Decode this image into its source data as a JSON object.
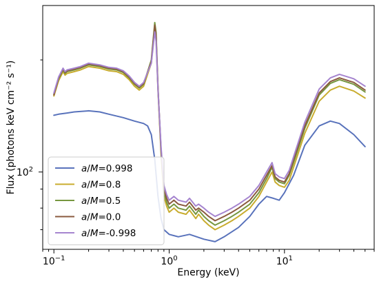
{
  "chart_data": {
    "type": "line",
    "xlabel": "Energy (keV)",
    "ylabel": "Flux (photons keV cm⁻² s⁻¹)",
    "xscale": "log",
    "yscale": "log",
    "xlim": [
      0.08,
      60
    ],
    "ylim": [
      62,
      280
    ],
    "xticks": [
      {
        "value": 0.1,
        "base": "10",
        "exp": "−1"
      },
      {
        "value": 1,
        "base": "10",
        "exp": "0"
      },
      {
        "value": 10,
        "base": "10",
        "exp": "1"
      }
    ],
    "yticks": [
      {
        "value": 100,
        "base": "10",
        "exp": "2"
      }
    ],
    "legend_position": "lower-left",
    "series": [
      {
        "name": "a/M=0.998",
        "label_parts": {
          "italic": "a",
          "mid": "/",
          "italic2": "M",
          "rest": "=0.998"
        },
        "color": "#5872bb",
        "x": [
          0.1,
          0.11,
          0.13,
          0.15,
          0.2,
          0.25,
          0.3,
          0.4,
          0.5,
          0.6,
          0.65,
          0.7,
          0.75,
          0.8,
          0.85,
          0.9,
          1.0,
          1.2,
          1.5,
          2.0,
          2.5,
          3.0,
          4.0,
          5.0,
          6.0,
          7.0,
          8.0,
          9.0,
          10,
          12,
          15,
          20,
          25,
          30,
          40,
          50
        ],
        "y": [
          142,
          143,
          144,
          145,
          146,
          145,
          143,
          140,
          137,
          135,
          133,
          126,
          108,
          86,
          75,
          70,
          68,
          67,
          68,
          66,
          65,
          67,
          71,
          76,
          82,
          86,
          85,
          84,
          88,
          98,
          118,
          133,
          137,
          135,
          126,
          117
        ]
      },
      {
        "name": "a/M=0.8",
        "label_parts": {
          "italic": "a",
          "mid": "/",
          "italic2": "M",
          "rest": "=0.8"
        },
        "color": "#c8ac2e",
        "x": [
          0.1,
          0.11,
          0.12,
          0.125,
          0.13,
          0.15,
          0.17,
          0.2,
          0.25,
          0.3,
          0.35,
          0.4,
          0.45,
          0.5,
          0.55,
          0.6,
          0.7,
          0.75,
          0.77,
          0.8,
          0.85,
          0.9,
          0.95,
          1.0,
          1.1,
          1.2,
          1.4,
          1.5,
          1.7,
          1.8,
          2.0,
          2.2,
          2.5,
          3.0,
          3.5,
          4.0,
          5.0,
          6.0,
          7.0,
          7.8,
          8.3,
          9.0,
          10,
          11,
          12,
          15,
          20,
          25,
          30,
          40,
          50
        ],
        "y": [
          160,
          176,
          186,
          182,
          184,
          186,
          188,
          192,
          190,
          187,
          186,
          183,
          177,
          170,
          166,
          170,
          196,
          245,
          230,
          165,
          112,
          86,
          81,
          78,
          80,
          78,
          77,
          79,
          75,
          77,
          74,
          72,
          70,
          72,
          74,
          76,
          80,
          86,
          94,
          100,
          94,
          92,
          91,
          95,
          103,
          127,
          155,
          166,
          170,
          165,
          158
        ]
      },
      {
        "name": "a/M=0.5",
        "label_parts": {
          "italic": "a",
          "mid": "/",
          "italic2": "M",
          "rest": "=0.5"
        },
        "color": "#76963f",
        "x": [
          0.1,
          0.11,
          0.12,
          0.125,
          0.13,
          0.15,
          0.17,
          0.2,
          0.25,
          0.3,
          0.35,
          0.4,
          0.45,
          0.5,
          0.55,
          0.6,
          0.7,
          0.75,
          0.77,
          0.8,
          0.85,
          0.9,
          0.95,
          1.0,
          1.1,
          1.2,
          1.4,
          1.5,
          1.7,
          1.8,
          2.0,
          2.2,
          2.5,
          3.0,
          3.5,
          4.0,
          5.0,
          6.0,
          7.0,
          7.8,
          8.3,
          9.0,
          10,
          11,
          12,
          15,
          20,
          25,
          30,
          40,
          50
        ],
        "y": [
          162,
          178,
          188,
          184,
          186,
          188,
          190,
          194,
          192,
          189,
          188,
          185,
          179,
          172,
          168,
          172,
          200,
          252,
          237,
          168,
          114,
          88,
          83,
          80,
          82,
          80,
          79,
          81,
          77,
          79,
          76,
          74,
          72,
          74,
          76,
          78,
          82,
          88,
          96,
          103,
          96,
          94,
          93,
          98,
          106,
          131,
          161,
          173,
          177,
          172,
          164
        ]
      },
      {
        "name": "a/M=0.0",
        "label_parts": {
          "italic": "a",
          "mid": "/",
          "italic2": "M",
          "rest": "=0.0"
        },
        "color": "#8a5a3e",
        "x": [
          0.1,
          0.11,
          0.12,
          0.125,
          0.13,
          0.15,
          0.17,
          0.2,
          0.25,
          0.3,
          0.35,
          0.4,
          0.45,
          0.5,
          0.55,
          0.6,
          0.7,
          0.75,
          0.77,
          0.8,
          0.85,
          0.9,
          0.95,
          1.0,
          1.1,
          1.2,
          1.4,
          1.5,
          1.7,
          1.8,
          2.0,
          2.2,
          2.5,
          3.0,
          3.5,
          4.0,
          5.0,
          6.0,
          7.0,
          7.8,
          8.3,
          9.0,
          10,
          11,
          12,
          15,
          20,
          25,
          30,
          40,
          50
        ],
        "y": [
          161,
          179,
          189,
          185,
          187,
          189,
          191,
          195,
          193,
          190,
          189,
          186,
          180,
          173,
          169,
          173,
          198,
          248,
          232,
          168,
          115,
          90,
          85,
          82,
          84,
          82,
          81,
          83,
          79,
          80,
          78,
          76,
          74,
          76,
          78,
          80,
          84,
          90,
          98,
          104,
          97,
          95,
          94,
          99,
          108,
          133,
          163,
          175,
          179,
          174,
          166
        ]
      },
      {
        "name": "a/M=-0.998",
        "label_parts": {
          "italic": "a",
          "mid": "/",
          "italic2": "M",
          "rest": "=-0.998"
        },
        "color": "#a584cf",
        "x": [
          0.1,
          0.11,
          0.12,
          0.125,
          0.13,
          0.15,
          0.17,
          0.2,
          0.25,
          0.3,
          0.35,
          0.4,
          0.45,
          0.5,
          0.55,
          0.6,
          0.7,
          0.75,
          0.77,
          0.8,
          0.85,
          0.9,
          0.95,
          1.0,
          1.1,
          1.2,
          1.4,
          1.5,
          1.7,
          1.8,
          2.0,
          2.2,
          2.5,
          3.0,
          3.5,
          4.0,
          5.0,
          6.0,
          7.0,
          7.8,
          8.3,
          9.0,
          10,
          11,
          12,
          15,
          20,
          25,
          30,
          40,
          50
        ],
        "y": [
          163,
          180,
          190,
          186,
          188,
          190,
          192,
          196,
          194,
          191,
          190,
          187,
          181,
          174,
          170,
          174,
          196,
          238,
          224,
          166,
          117,
          92,
          87,
          84,
          86,
          84,
          83,
          85,
          81,
          82,
          80,
          78,
          76,
          78,
          80,
          82,
          86,
          92,
          100,
          106,
          99,
          97,
          96,
          101,
          110,
          136,
          167,
          179,
          183,
          178,
          170
        ]
      }
    ]
  }
}
